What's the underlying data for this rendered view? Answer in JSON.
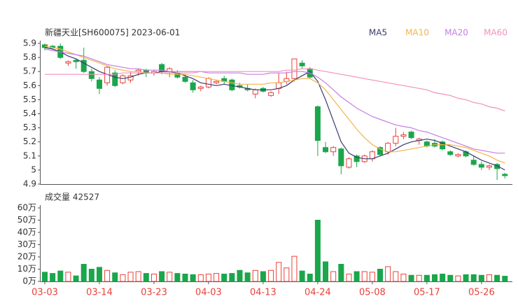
{
  "chart_data": [
    {
      "type": "candlestick",
      "title": "新疆天业[SH600075] 2023-06-01",
      "ylim": [
        4.9,
        5.9
      ],
      "yticks": [
        4.9,
        5,
        5.1,
        5.2,
        5.3,
        5.4,
        5.5,
        5.6,
        5.7,
        5.8,
        5.9
      ],
      "up_color": "#e8413a",
      "down_color": "#1aa64b",
      "open": [
        5.89,
        5.88,
        5.88,
        5.76,
        5.78,
        5.78,
        5.7,
        5.64,
        5.62,
        5.69,
        5.62,
        5.64,
        5.7,
        5.71,
        5.69,
        5.75,
        5.7,
        5.69,
        5.66,
        5.62,
        5.58,
        5.59,
        5.62,
        5.65,
        5.64,
        5.6,
        5.58,
        5.54,
        5.58,
        5.53,
        5.58,
        5.63,
        5.65,
        5.76,
        5.72,
        5.45,
        5.16,
        5.13,
        5.15,
        5.02,
        5.1,
        5.06,
        5.08,
        5.16,
        5.13,
        5.19,
        5.24,
        5.27,
        5.21,
        5.2,
        5.19,
        5.2,
        5.13,
        5.1,
        5.13,
        5.07,
        5.04,
        5.02,
        5.04,
        4.97
      ],
      "high": [
        5.9,
        5.89,
        5.9,
        5.78,
        5.79,
        5.87,
        5.72,
        5.66,
        5.74,
        5.71,
        5.68,
        5.7,
        5.72,
        5.72,
        5.71,
        5.76,
        5.73,
        5.71,
        5.68,
        5.64,
        5.6,
        5.66,
        5.64,
        5.67,
        5.65,
        5.62,
        5.61,
        5.58,
        5.59,
        5.56,
        5.69,
        5.7,
        5.79,
        5.78,
        5.73,
        5.46,
        5.2,
        5.17,
        5.16,
        5.09,
        5.11,
        5.11,
        5.14,
        5.17,
        5.2,
        5.3,
        5.27,
        5.28,
        5.23,
        5.21,
        5.22,
        5.21,
        5.14,
        5.12,
        5.14,
        5.1,
        5.06,
        5.04,
        5.05,
        4.98
      ],
      "low": [
        5.85,
        5.86,
        5.79,
        5.74,
        5.72,
        5.69,
        5.63,
        5.54,
        5.6,
        5.59,
        5.61,
        5.62,
        5.67,
        5.66,
        5.67,
        5.68,
        5.66,
        5.65,
        5.62,
        5.55,
        5.56,
        5.58,
        5.61,
        5.61,
        5.56,
        5.58,
        5.56,
        5.51,
        5.55,
        5.52,
        5.54,
        5.61,
        5.63,
        5.72,
        5.65,
        5.1,
        5.12,
        5.1,
        4.97,
        5.01,
        5.02,
        5.05,
        5.06,
        5.1,
        5.11,
        5.17,
        5.22,
        5.22,
        5.18,
        5.16,
        5.16,
        5.14,
        5.1,
        5.09,
        5.09,
        5.03,
        5.0,
        5.0,
        4.93,
        4.94
      ],
      "close": [
        5.87,
        5.87,
        5.8,
        5.77,
        5.77,
        5.7,
        5.65,
        5.58,
        5.73,
        5.6,
        5.67,
        5.67,
        5.71,
        5.69,
        5.7,
        5.7,
        5.72,
        5.66,
        5.63,
        5.57,
        5.59,
        5.65,
        5.63,
        5.63,
        5.57,
        5.59,
        5.57,
        5.57,
        5.56,
        5.55,
        5.62,
        5.65,
        5.79,
        5.74,
        5.66,
        5.21,
        5.13,
        5.16,
        5.03,
        5.08,
        5.06,
        5.1,
        5.13,
        5.11,
        5.19,
        5.24,
        5.25,
        5.23,
        5.22,
        5.17,
        5.17,
        5.15,
        5.11,
        5.11,
        5.1,
        5.04,
        5.02,
        5.03,
        5.01,
        4.96
      ],
      "series": [
        {
          "name": "MA5",
          "color": "#3a3a6e",
          "values": [
            5.87,
            5.86,
            5.84,
            5.81,
            5.79,
            5.76,
            5.73,
            5.7,
            5.68,
            5.66,
            5.65,
            5.66,
            5.68,
            5.69,
            5.69,
            5.7,
            5.7,
            5.69,
            5.67,
            5.65,
            5.62,
            5.61,
            5.6,
            5.61,
            5.6,
            5.59,
            5.58,
            5.57,
            5.57,
            5.57,
            5.58,
            5.6,
            5.64,
            5.67,
            5.7,
            5.63,
            5.5,
            5.35,
            5.2,
            5.12,
            5.09,
            5.08,
            5.08,
            5.1,
            5.12,
            5.15,
            5.18,
            5.2,
            5.21,
            5.22,
            5.21,
            5.19,
            5.17,
            5.15,
            5.13,
            5.1,
            5.07,
            5.05,
            5.03,
            5.0
          ]
        },
        {
          "name": "MA10",
          "color": "#f5b449",
          "values": [
            5.88,
            5.87,
            5.86,
            5.84,
            5.82,
            5.8,
            5.78,
            5.76,
            5.74,
            5.72,
            5.71,
            5.7,
            5.7,
            5.69,
            5.69,
            5.69,
            5.68,
            5.68,
            5.68,
            5.67,
            5.66,
            5.65,
            5.64,
            5.63,
            5.62,
            5.61,
            5.61,
            5.61,
            5.61,
            5.62,
            5.62,
            5.63,
            5.64,
            5.65,
            5.65,
            5.62,
            5.57,
            5.5,
            5.43,
            5.36,
            5.29,
            5.23,
            5.18,
            5.15,
            5.13,
            5.13,
            5.14,
            5.15,
            5.16,
            5.17,
            5.18,
            5.18,
            5.18,
            5.17,
            5.16,
            5.14,
            5.12,
            5.1,
            5.07,
            5.05
          ]
        },
        {
          "name": "MA20",
          "color": "#c57ee0",
          "values": [
            5.86,
            5.85,
            5.84,
            5.83,
            5.82,
            5.81,
            5.79,
            5.77,
            5.75,
            5.74,
            5.73,
            5.72,
            5.72,
            5.71,
            5.71,
            5.71,
            5.7,
            5.7,
            5.7,
            5.7,
            5.7,
            5.69,
            5.69,
            5.69,
            5.69,
            5.69,
            5.68,
            5.68,
            5.68,
            5.69,
            5.69,
            5.69,
            5.7,
            5.7,
            5.69,
            5.66,
            5.62,
            5.57,
            5.52,
            5.48,
            5.44,
            5.41,
            5.38,
            5.36,
            5.34,
            5.32,
            5.31,
            5.3,
            5.28,
            5.27,
            5.25,
            5.23,
            5.21,
            5.19,
            5.17,
            5.15,
            5.14,
            5.13,
            5.12,
            5.12
          ]
        },
        {
          "name": "MA60",
          "color": "#f291bd",
          "values": [
            5.68,
            5.68,
            5.68,
            5.68,
            5.68,
            5.68,
            5.68,
            5.68,
            5.68,
            5.68,
            5.69,
            5.69,
            5.69,
            5.69,
            5.69,
            5.69,
            5.69,
            5.69,
            5.69,
            5.69,
            5.7,
            5.7,
            5.7,
            5.7,
            5.7,
            5.7,
            5.7,
            5.7,
            5.7,
            5.7,
            5.7,
            5.71,
            5.71,
            5.72,
            5.72,
            5.71,
            5.7,
            5.69,
            5.68,
            5.67,
            5.66,
            5.65,
            5.64,
            5.63,
            5.62,
            5.61,
            5.6,
            5.59,
            5.58,
            5.57,
            5.55,
            5.54,
            5.53,
            5.51,
            5.5,
            5.48,
            5.47,
            5.45,
            5.44,
            5.42
          ]
        }
      ]
    },
    {
      "type": "bar",
      "title": "成交量 42527",
      "ylim": [
        0,
        60
      ],
      "yticks": [
        {
          "value": 0,
          "label": "0万"
        },
        {
          "value": 10,
          "label": "10万"
        },
        {
          "value": 20,
          "label": "20万"
        },
        {
          "value": 30,
          "label": "30万"
        },
        {
          "value": 40,
          "label": "40万"
        },
        {
          "value": 50,
          "label": "50万"
        },
        {
          "value": 60,
          "label": "60万"
        }
      ],
      "categories": [
        "03-03",
        null,
        null,
        null,
        null,
        null,
        null,
        "03-14",
        null,
        null,
        null,
        null,
        null,
        null,
        "03-23",
        null,
        null,
        null,
        null,
        null,
        null,
        "04-03",
        null,
        null,
        null,
        null,
        null,
        null,
        "04-13",
        null,
        null,
        null,
        null,
        null,
        null,
        "04-24",
        null,
        null,
        null,
        null,
        null,
        null,
        "05-08",
        null,
        null,
        null,
        null,
        null,
        null,
        "05-17",
        null,
        null,
        null,
        null,
        null,
        null,
        "05-26",
        null,
        null,
        null
      ],
      "values": [
        7.5,
        6.5,
        8.5,
        7.5,
        4.5,
        14,
        10,
        11.5,
        9,
        7,
        5.5,
        7.5,
        8,
        6.5,
        6,
        8,
        7.5,
        6.5,
        6,
        5.5,
        5.5,
        6,
        6.5,
        6,
        6.5,
        9,
        7,
        9,
        8,
        9,
        15.5,
        11,
        20.5,
        8.5,
        6,
        50,
        16,
        8,
        14,
        6,
        8,
        8,
        7.5,
        10,
        12,
        8,
        6,
        5,
        5,
        5,
        5.5,
        6,
        5,
        4.5,
        5.5,
        5.5,
        5,
        5.5,
        5,
        4.25
      ]
    }
  ]
}
